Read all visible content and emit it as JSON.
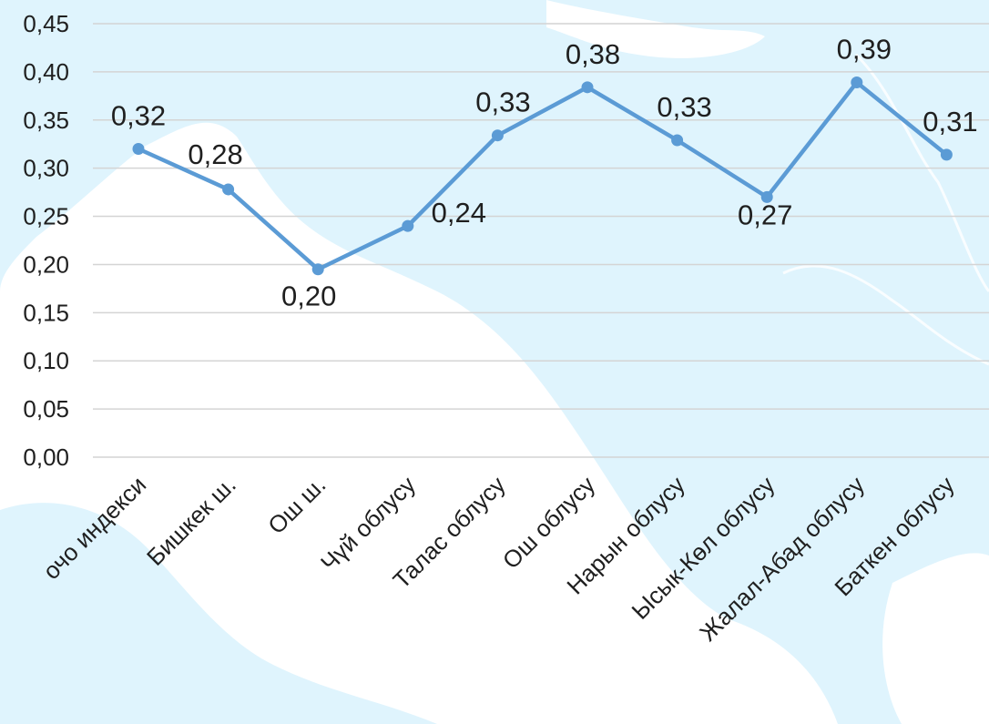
{
  "chart_data": {
    "type": "line",
    "categories": [
      "Жалпы өлкөлүк Джини коэффициенти / Тоочо индекси",
      "Бишкек ш.",
      "Ош ш.",
      "Чүй облусу",
      "Талас облусу",
      "Ош облусу",
      "Нарын облусу",
      "Ысык-Көл облусу",
      "Жалал-Абад облусу",
      "Баткен облусу"
    ],
    "category_labels": [
      "очо индекси",
      "Бишкек ш.",
      "Ош ш.",
      "Чүй облусу",
      "Талас облусу",
      "Ош облусу",
      "Нарын облусу",
      "Ысык-Көл облусу",
      "Жалал-Абад облусу",
      "Баткен облусу"
    ],
    "series": [
      {
        "values": [
          0.32,
          0.278,
          0.195,
          0.24,
          0.334,
          0.384,
          0.329,
          0.27,
          0.389,
          0.314
        ],
        "labels": [
          "0,32",
          "0,28",
          "0,20",
          "0,24",
          "0,33",
          "0,38",
          "0,33",
          "0,27",
          "0,39",
          "0,31"
        ]
      }
    ],
    "ylim": [
      0,
      0.45
    ],
    "yticks": [
      0,
      0.05,
      0.1,
      0.15,
      0.2,
      0.25,
      0.3,
      0.35,
      0.4,
      0.45
    ],
    "ytick_labels": [
      "0,00",
      "0,05",
      "0,10",
      "0,15",
      "0,20",
      "0,25",
      "0,30",
      "0,35",
      "0,40",
      "0,45"
    ],
    "grid": true,
    "legend": "none",
    "title": "",
    "xlabel": "",
    "ylabel": "",
    "colors": {
      "line": "#5b9bd5",
      "grid": "#d4d4d4",
      "background_sea": "#dff4fd",
      "background_land": "#ffffff"
    }
  }
}
